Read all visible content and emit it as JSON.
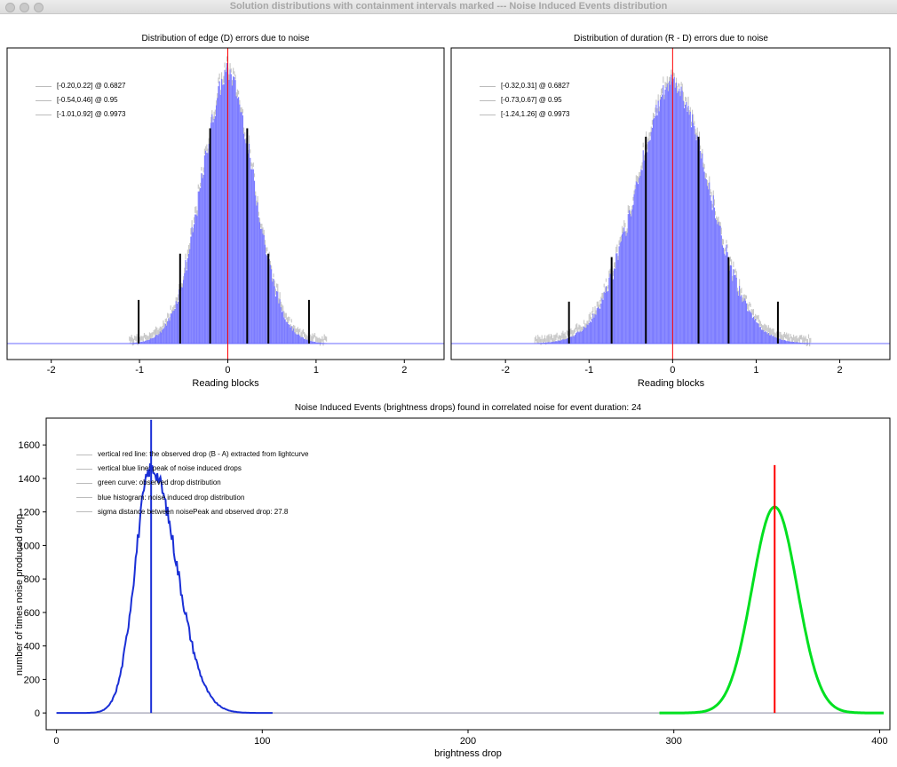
{
  "window": {
    "title": "Solution distributions with containment intervals marked --- Noise Induced Events distribution"
  },
  "colors": {
    "histogram": "#7b7bff",
    "noise_band": "#c8c8c8",
    "red_line": "#ff0000",
    "blue_curve": "#1a2fd6",
    "green_curve": "#00e020",
    "black_marker": "#000000"
  },
  "chart_data": [
    {
      "type": "bar",
      "title": "Distribution of edge (D) errors due to noise",
      "xlabel": "Reading blocks",
      "ylabel": "",
      "xlim": [
        -2.5,
        2.45
      ],
      "xticks": [
        "-2",
        "-1",
        "0",
        "1",
        "2"
      ],
      "center": 0.0,
      "sigma": 0.21,
      "intervals": [
        {
          "label": "[-0.20,0.22] @ 0.6827",
          "low": -0.2,
          "high": 0.22,
          "level": 0.6827
        },
        {
          "label": "[-0.54,0.46] @ 0.95",
          "low": -0.54,
          "high": 0.46,
          "level": 0.95
        },
        {
          "label": "[-1.01,0.92] @ 0.9973",
          "low": -1.01,
          "high": 0.92,
          "level": 0.9973
        }
      ],
      "red_line_x": 0.0
    },
    {
      "type": "bar",
      "title": "Distribution of duration (R - D) errors due to noise",
      "xlabel": "Reading blocks",
      "ylabel": "",
      "xlim": [
        -2.65,
        2.6
      ],
      "xticks": [
        "-2",
        "-1",
        "0",
        "1",
        "2"
      ],
      "center": 0.0,
      "sigma": 0.31,
      "intervals": [
        {
          "label": "[-0.32,0.31] @ 0.6827",
          "low": -0.32,
          "high": 0.31,
          "level": 0.6827
        },
        {
          "label": "[-0.73,0.67] @ 0.95",
          "low": -0.73,
          "high": 0.67,
          "level": 0.95
        },
        {
          "label": "[-1.24,1.26] @ 0.9973",
          "low": -1.24,
          "high": 1.26,
          "level": 0.9973
        }
      ],
      "red_line_x": 0.0
    },
    {
      "type": "line",
      "title": "Noise Induced Events (brightness drops) found in correlated noise for event duration: 24",
      "xlabel": "brightness drop",
      "ylabel": "number of times noise produced drop",
      "xlim": [
        -5,
        405
      ],
      "ylim": [
        -100,
        1760
      ],
      "xticks": [
        0,
        100,
        200,
        300,
        400
      ],
      "yticks": [
        0,
        200,
        400,
        600,
        800,
        1000,
        1200,
        1400,
        1600
      ],
      "series": [
        {
          "name": "blue histogram: noise induced drop distribution",
          "peak_x": 46,
          "peak_y": 1460,
          "sigma": 10
        },
        {
          "name": "green curve: observed drop distribution",
          "peak_x": 349,
          "peak_y": 1230,
          "sigma": 11
        }
      ],
      "blue_line": {
        "x": 46,
        "top": 1750
      },
      "red_line": {
        "x": 349,
        "top": 1480
      },
      "legend": [
        "vertical red line: the observed drop (B - A) extracted from lightcurve",
        "vertical blue line: peak of noise induced drops",
        "green curve: observed drop distribution",
        "blue histogram: noise induced drop distribution",
        "sigma distance between noisePeak and observed drop: 27.8"
      ]
    }
  ]
}
